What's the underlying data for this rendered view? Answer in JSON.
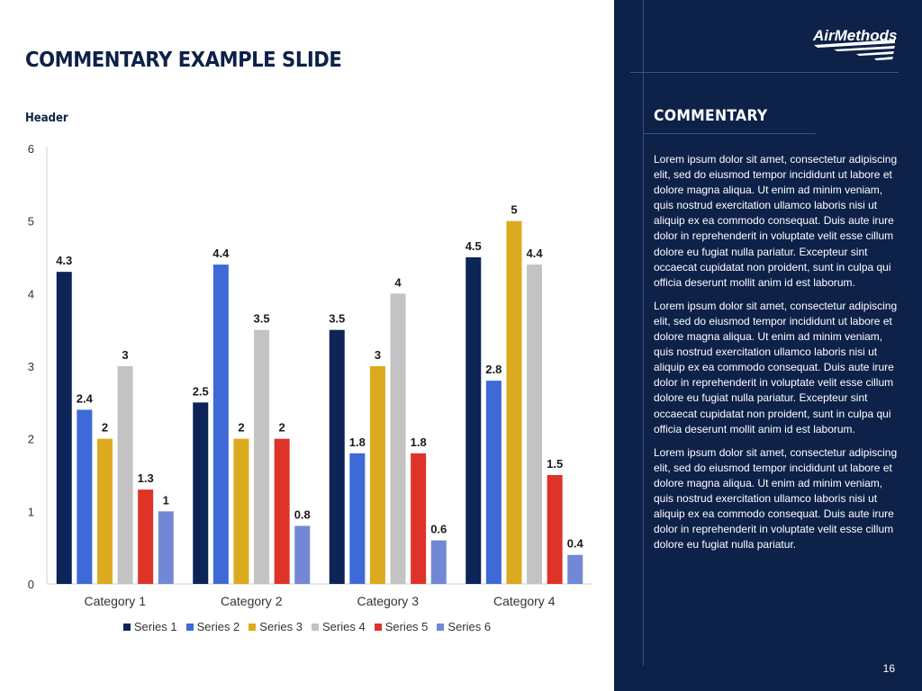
{
  "slide": {
    "title": "COMMENTARY EXAMPLE SLIDE",
    "chart_header": "Header",
    "page_number": "16"
  },
  "logo": {
    "text": "AirMethods",
    "icon": "air-methods-wing-logo"
  },
  "commentary": {
    "title": "COMMENTARY",
    "paragraphs": [
      "Lorem ipsum dolor sit amet, consectetur adipiscing elit, sed do eiusmod tempor incididunt ut labore et dolore magna aliqua. Ut enim ad minim veniam, quis nostrud exercitation ullamco laboris nisi ut aliquip ex ea commodo consequat. Duis aute irure dolor in reprehenderit in voluptate velit esse cillum dolore eu fugiat nulla pariatur. Excepteur sint occaecat cupidatat non proident, sunt in culpa qui officia deserunt mollit anim id est laborum.",
      "Lorem ipsum dolor sit amet, consectetur adipiscing elit, sed do eiusmod tempor incididunt ut labore et dolore magna aliqua. Ut enim ad minim veniam, quis nostrud exercitation ullamco laboris nisi ut aliquip ex ea commodo consequat. Duis aute irure dolor in reprehenderit in voluptate velit esse cillum dolore eu fugiat nulla pariatur. Excepteur sint occaecat cupidatat non proident, sunt in culpa qui officia deserunt mollit anim id est laborum.",
      "Lorem ipsum dolor sit amet, consectetur adipiscing elit, sed do eiusmod tempor incididunt ut labore et dolore magna aliqua. Ut enim ad minim veniam, quis nostrud exercitation ullamco laboris nisi ut aliquip ex ea commodo consequat. Duis aute irure dolor in reprehenderit in voluptate velit esse cillum dolore eu fugiat nulla pariatur."
    ]
  },
  "colors": {
    "navy": "#0d2149",
    "panel_line": "#3c5383",
    "axis_text": "#333333"
  },
  "chart_data": {
    "type": "bar",
    "title": "Header",
    "xlabel": "",
    "ylabel": "",
    "ylim": [
      0,
      6
    ],
    "yticks": [
      0,
      1,
      2,
      3,
      4,
      5,
      6
    ],
    "grid": false,
    "legend_position": "bottom",
    "categories": [
      "Category 1",
      "Category 2",
      "Category 3",
      "Category 4"
    ],
    "series": [
      {
        "name": "Series 1",
        "color": "#0c2457",
        "values": [
          4.3,
          2.5,
          3.5,
          4.5
        ]
      },
      {
        "name": "Series 2",
        "color": "#3e6ad8",
        "values": [
          2.4,
          4.4,
          1.8,
          2.8
        ]
      },
      {
        "name": "Series 3",
        "color": "#dcaa1f",
        "values": [
          2,
          2,
          3,
          5
        ]
      },
      {
        "name": "Series 4",
        "color": "#c3c3c3",
        "values": [
          3,
          3.5,
          4,
          4.4
        ]
      },
      {
        "name": "Series 5",
        "color": "#dd3329",
        "values": [
          1.3,
          2,
          1.8,
          1.5
        ]
      },
      {
        "name": "Series 6",
        "color": "#7288d6",
        "values": [
          1,
          0.8,
          0.6,
          0.4
        ]
      }
    ]
  }
}
